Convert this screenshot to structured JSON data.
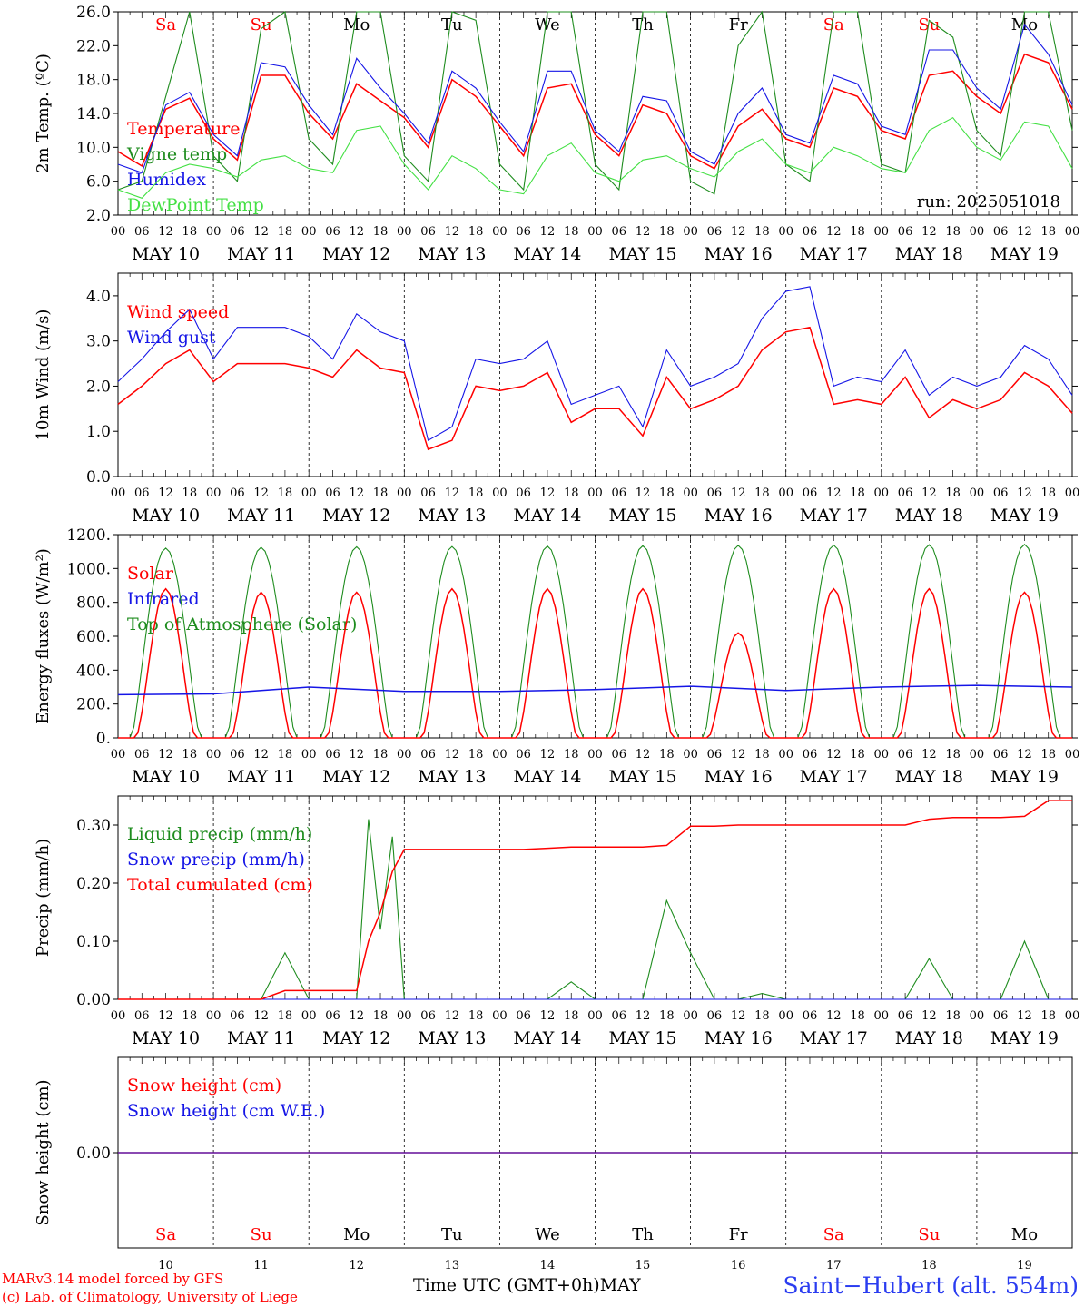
{
  "colors": {
    "red": "#ff0000",
    "green": "#1e8c1e",
    "blue": "#1515e6",
    "lightgreen": "#44e044",
    "black": "#000000",
    "weekend": "#ff0000"
  },
  "days": {
    "dates": [
      "MAY 10",
      "MAY 11",
      "MAY 12",
      "MAY 13",
      "MAY 14",
      "MAY 15",
      "MAY 16",
      "MAY 17",
      "MAY 18",
      "MAY 19"
    ],
    "weekdays": [
      "Sa",
      "Su",
      "Mo",
      "Tu",
      "We",
      "Th",
      "Fr",
      "Sa",
      "Su",
      "Mo"
    ],
    "weekend": [
      true,
      true,
      false,
      false,
      false,
      false,
      false,
      true,
      true,
      false
    ],
    "daynums": [
      "10",
      "11",
      "12",
      "13",
      "14",
      "15",
      "16",
      "17",
      "18",
      "19"
    ],
    "hour_ticks": [
      "00",
      "06",
      "12",
      "18"
    ],
    "end_tick": "00"
  },
  "footer": {
    "credit_line1": "MARv3.14 model forced by GFS",
    "credit_line2": "(c) Lab. of Climatology, University of Liege",
    "x_title": "Time UTC (GMT+0h)",
    "month": "MAY",
    "station": "Saint−Hubert (alt. 554m)"
  },
  "chart_data": [
    {
      "type": "line",
      "ylabel": "2m Temp. (ºC)",
      "ylim": [
        2.0,
        26.0
      ],
      "yticks": [
        "2.0",
        "6.0",
        "10.0",
        "14.0",
        "18.0",
        "22.0",
        "26.0"
      ],
      "ytick_values": [
        2,
        6,
        10,
        14,
        18,
        22,
        26
      ],
      "annotation": "run: 2025051018",
      "x_hours": [
        0,
        6,
        12,
        18,
        24,
        30,
        36,
        42,
        48,
        54,
        60,
        66,
        72,
        78,
        84,
        90,
        96,
        102,
        108,
        114,
        120,
        126,
        132,
        138,
        144,
        150,
        156,
        162,
        168,
        174,
        180,
        186,
        192,
        198,
        204,
        210,
        216,
        222,
        228,
        234,
        240
      ],
      "series": [
        {
          "name": "Temperature",
          "color": "red",
          "values": [
            9.5,
            7.8,
            14.5,
            15.8,
            11.0,
            8.5,
            18.5,
            18.5,
            14.0,
            11.0,
            17.5,
            15.5,
            13.5,
            10.0,
            18.0,
            16.0,
            12.5,
            9.0,
            17.0,
            17.5,
            11.5,
            9.0,
            15.0,
            14.0,
            9.0,
            7.5,
            12.5,
            14.5,
            11.0,
            10.0,
            17.0,
            16.0,
            12.0,
            11.0,
            18.5,
            19.0,
            16.0,
            14.0,
            21.0,
            20.0,
            14.5
          ]
        },
        {
          "name": "Vigne temp",
          "color": "green",
          "values": [
            5.0,
            6.0,
            16.0,
            26.0,
            9.0,
            6.0,
            24.0,
            26.0,
            11.0,
            8.0,
            26.0,
            26.0,
            9.0,
            6.0,
            26.0,
            25.0,
            8.0,
            5.0,
            26.0,
            26.0,
            8.0,
            5.0,
            26.0,
            26.0,
            6.0,
            4.5,
            22.0,
            26.0,
            8.0,
            6.0,
            26.0,
            26.0,
            8.0,
            7.0,
            25.0,
            23.0,
            12.0,
            9.0,
            26.0,
            26.0,
            12.0
          ]
        },
        {
          "name": "Humidex",
          "color": "blue",
          "values": [
            8.0,
            7.0,
            15.0,
            16.5,
            11.5,
            9.0,
            20.0,
            19.5,
            15.0,
            11.5,
            20.5,
            17.0,
            14.0,
            10.5,
            19.0,
            17.0,
            13.0,
            9.5,
            19.0,
            19.0,
            12.0,
            9.5,
            16.0,
            15.5,
            9.5,
            8.0,
            14.0,
            17.0,
            11.5,
            10.5,
            18.5,
            17.5,
            12.5,
            11.5,
            21.5,
            21.5,
            17.0,
            14.5,
            24.5,
            21.0,
            15.0
          ]
        },
        {
          "name": "DewPoint Temp",
          "color": "lightgreen",
          "values": [
            5.0,
            4.0,
            7.0,
            8.0,
            7.5,
            6.5,
            8.5,
            9.0,
            7.5,
            7.0,
            12.0,
            12.5,
            8.0,
            5.0,
            9.0,
            7.5,
            5.0,
            4.5,
            9.0,
            10.5,
            7.0,
            6.0,
            8.5,
            9.0,
            7.5,
            6.5,
            9.5,
            11.0,
            8.0,
            7.0,
            10.0,
            9.0,
            7.5,
            7.0,
            12.0,
            13.5,
            10.0,
            8.5,
            13.0,
            12.5,
            7.5
          ]
        }
      ]
    },
    {
      "type": "line",
      "ylabel": "10m Wind (m/s)",
      "ylim": [
        0.0,
        4.5
      ],
      "yticks": [
        "0.0",
        "1.0",
        "2.0",
        "3.0",
        "4.0"
      ],
      "ytick_values": [
        0,
        1,
        2,
        3,
        4
      ],
      "x_hours": [
        0,
        6,
        12,
        18,
        24,
        30,
        36,
        42,
        48,
        54,
        60,
        66,
        72,
        78,
        84,
        90,
        96,
        102,
        108,
        114,
        120,
        126,
        132,
        138,
        144,
        150,
        156,
        162,
        168,
        174,
        180,
        186,
        192,
        198,
        204,
        210,
        216,
        222,
        228,
        234,
        240
      ],
      "series": [
        {
          "name": "Wind speed",
          "color": "red",
          "values": [
            1.6,
            2.0,
            2.5,
            2.8,
            2.1,
            2.5,
            2.5,
            2.5,
            2.4,
            2.2,
            2.8,
            2.4,
            2.3,
            0.6,
            0.8,
            2.0,
            1.9,
            2.0,
            2.3,
            1.2,
            1.5,
            1.5,
            0.9,
            2.2,
            1.5,
            1.7,
            2.0,
            2.8,
            3.2,
            3.3,
            1.6,
            1.7,
            1.6,
            2.2,
            1.3,
            1.7,
            1.5,
            1.7,
            2.3,
            2.0,
            1.4
          ]
        },
        {
          "name": "Wind gust",
          "color": "blue",
          "values": [
            2.1,
            2.6,
            3.2,
            3.7,
            2.6,
            3.3,
            3.3,
            3.3,
            3.1,
            2.6,
            3.6,
            3.2,
            3.0,
            0.8,
            1.1,
            2.6,
            2.5,
            2.6,
            3.0,
            1.6,
            1.8,
            2.0,
            1.1,
            2.8,
            2.0,
            2.2,
            2.5,
            3.5,
            4.1,
            4.2,
            2.0,
            2.2,
            2.1,
            2.8,
            1.8,
            2.2,
            2.0,
            2.2,
            2.9,
            2.6,
            1.8
          ]
        }
      ]
    },
    {
      "type": "line",
      "ylabel": "Energy fluxes (W/m²)",
      "ylim": [
        0,
        1200
      ],
      "yticks": [
        "0.",
        "200.",
        "400.",
        "600.",
        "800.",
        "1000.",
        "1200."
      ],
      "ytick_values": [
        0,
        200,
        400,
        600,
        800,
        1000,
        1200
      ],
      "day_peaks_solar": [
        880,
        860,
        860,
        880,
        880,
        880,
        620,
        880,
        880,
        860
      ],
      "day_peaks_toa": [
        1120,
        1125,
        1128,
        1130,
        1132,
        1134,
        1136,
        1138,
        1140,
        1142
      ],
      "x_hours": [
        0,
        24,
        48,
        72,
        96,
        120,
        144,
        168,
        192,
        216,
        240
      ],
      "series": [
        {
          "name": "Solar",
          "color": "red",
          "values": [
            0,
            0,
            0,
            0,
            0,
            0,
            0,
            0,
            0,
            0,
            0
          ]
        },
        {
          "name": "Infrared",
          "color": "blue",
          "values": [
            255,
            260,
            300,
            275,
            275,
            285,
            305,
            280,
            300,
            310,
            300
          ]
        },
        {
          "name": "Top of Atmosphere (Solar)",
          "color": "green",
          "values": [
            0,
            0,
            0,
            0,
            0,
            0,
            0,
            0,
            0,
            0,
            0
          ]
        }
      ]
    },
    {
      "type": "line",
      "ylabel": "Precip (mm/h)",
      "ylim": [
        0.0,
        0.35
      ],
      "yticks": [
        "0.00",
        "0.10",
        "0.20",
        "0.30"
      ],
      "ytick_values": [
        0,
        0.1,
        0.2,
        0.3
      ],
      "x_hours": [
        0,
        6,
        12,
        18,
        24,
        30,
        36,
        42,
        48,
        54,
        60,
        63,
        66,
        69,
        72,
        78,
        84,
        90,
        96,
        102,
        108,
        114,
        120,
        126,
        132,
        138,
        144,
        150,
        156,
        162,
        168,
        174,
        180,
        186,
        192,
        198,
        204,
        210,
        216,
        222,
        228,
        234,
        240
      ],
      "series": [
        {
          "name": "Liquid precip (mm/h)",
          "color": "green",
          "values": [
            0,
            0,
            0,
            0,
            0,
            0,
            0,
            0.08,
            0,
            0,
            0,
            0.31,
            0.12,
            0.28,
            0,
            0,
            0,
            0,
            0,
            0,
            0,
            0.03,
            0,
            0,
            0,
            0.17,
            0.08,
            0,
            0,
            0.01,
            0,
            0,
            0,
            0,
            0,
            0,
            0.07,
            0,
            0,
            0,
            0.1,
            0,
            0
          ]
        },
        {
          "name": "Snow precip (mm/h)",
          "color": "blue",
          "values": [
            0,
            0,
            0,
            0,
            0,
            0,
            0,
            0,
            0,
            0,
            0,
            0,
            0,
            0,
            0,
            0,
            0,
            0,
            0,
            0,
            0,
            0,
            0,
            0,
            0,
            0,
            0,
            0,
            0,
            0,
            0,
            0,
            0,
            0,
            0,
            0,
            0,
            0,
            0,
            0,
            0,
            0,
            0
          ]
        },
        {
          "name": "Total cumulated (cm)",
          "color": "red",
          "values": [
            0,
            0,
            0,
            0,
            0,
            0,
            0,
            0.015,
            0.015,
            0.015,
            0.015,
            0.1,
            0.15,
            0.22,
            0.258,
            0.258,
            0.258,
            0.258,
            0.258,
            0.258,
            0.26,
            0.262,
            0.262,
            0.262,
            0.262,
            0.265,
            0.298,
            0.298,
            0.3,
            0.3,
            0.3,
            0.3,
            0.3,
            0.3,
            0.3,
            0.3,
            0.31,
            0.313,
            0.313,
            0.313,
            0.315,
            0.342,
            0.342
          ]
        }
      ]
    },
    {
      "type": "line",
      "ylabel": "Snow height (cm)",
      "ylim": [
        -1,
        1
      ],
      "yticks": [
        "0.00"
      ],
      "ytick_values": [
        0
      ],
      "x_hours": [
        0,
        240
      ],
      "series": [
        {
          "name": "Snow height (cm)",
          "color": "red",
          "values": [
            0,
            0
          ]
        },
        {
          "name": "Snow height (cm W.E.)",
          "color": "blue",
          "values": [
            0,
            0
          ]
        }
      ]
    }
  ]
}
